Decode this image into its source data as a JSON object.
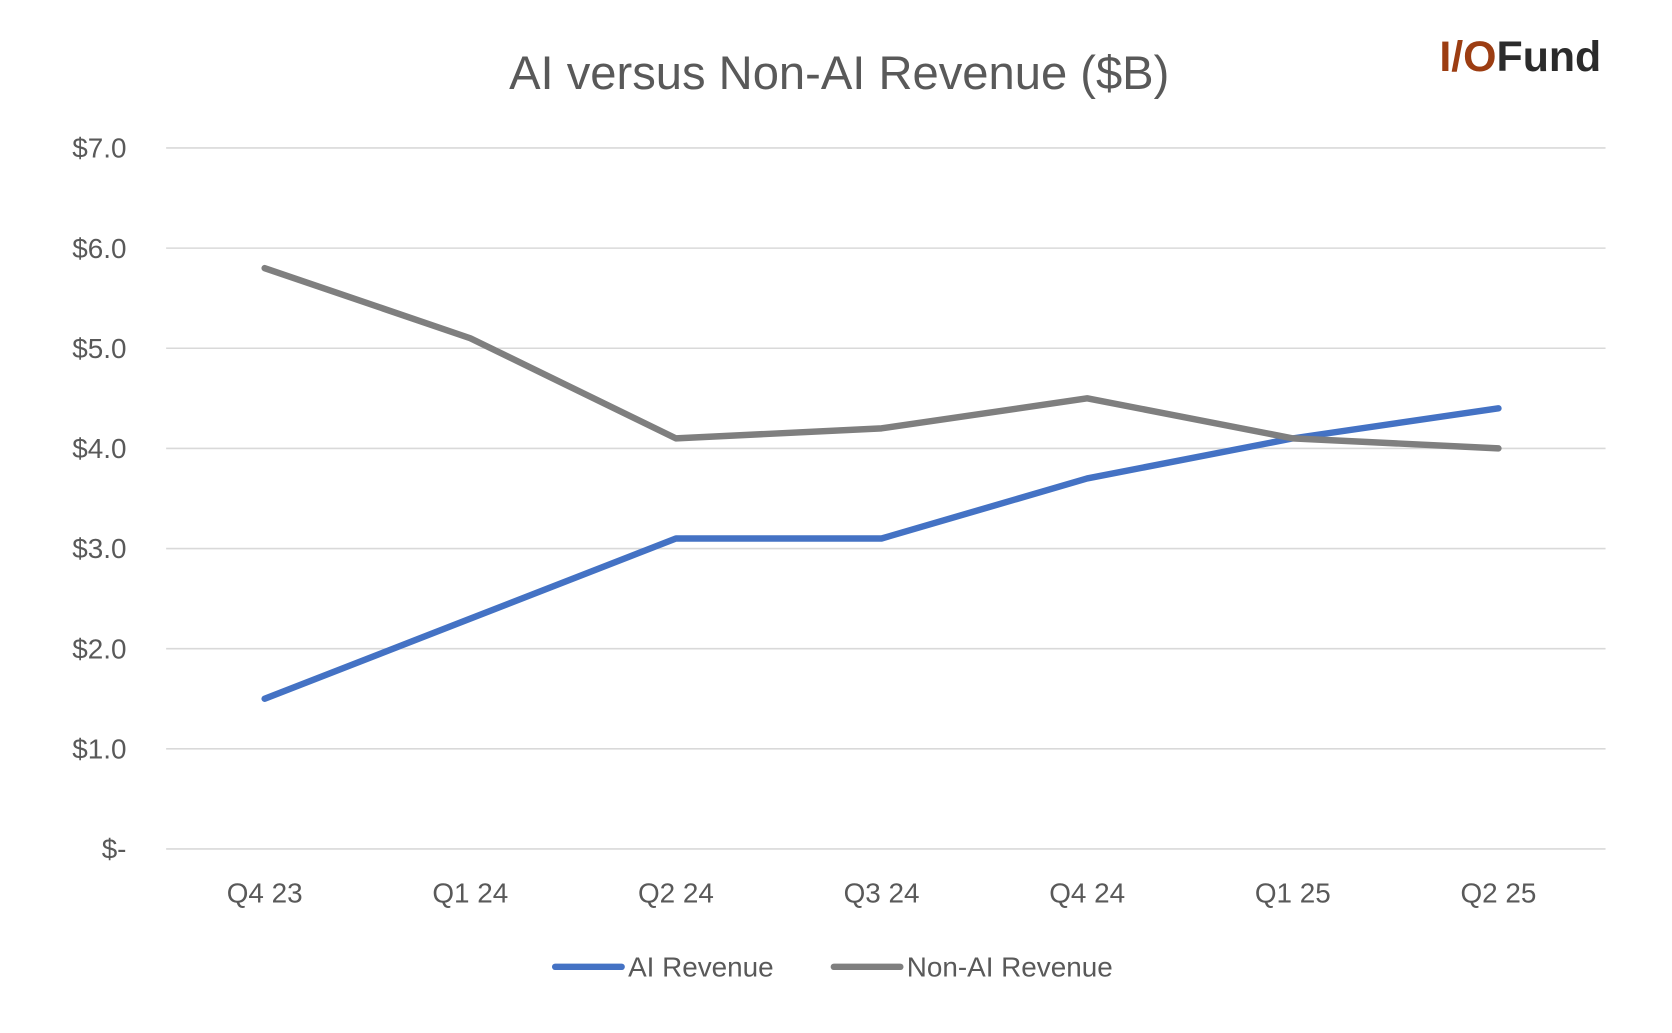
{
  "logo": {
    "text_accent": "I/O",
    "text_main": "Fund",
    "accent_color": "#9c3d12",
    "main_color": "#2b2b2b"
  },
  "chart_data": {
    "type": "line",
    "title": "AI versus Non-AI Revenue ($B)",
    "xlabel": "",
    "ylabel": "",
    "categories": [
      "Q4 23",
      "Q1 24",
      "Q2 24",
      "Q3 24",
      "Q4 24",
      "Q1 25",
      "Q2 25"
    ],
    "ylim": [
      0,
      7
    ],
    "yticks": [
      0,
      1,
      2,
      3,
      4,
      5,
      6,
      7
    ],
    "ytick_labels": [
      "$-",
      "$1.0",
      "$2.0",
      "$3.0",
      "$4.0",
      "$5.0",
      "$6.0",
      "$7.0"
    ],
    "grid": true,
    "legend_position": "bottom",
    "series": [
      {
        "name": "AI Revenue",
        "color": "#4472c4",
        "values": [
          1.5,
          2.3,
          3.1,
          3.1,
          3.7,
          4.1,
          4.4
        ]
      },
      {
        "name": "Non-AI Revenue",
        "color": "#7f7f7f",
        "values": [
          5.8,
          5.1,
          4.1,
          4.2,
          4.5,
          4.1,
          4.0
        ]
      }
    ]
  }
}
